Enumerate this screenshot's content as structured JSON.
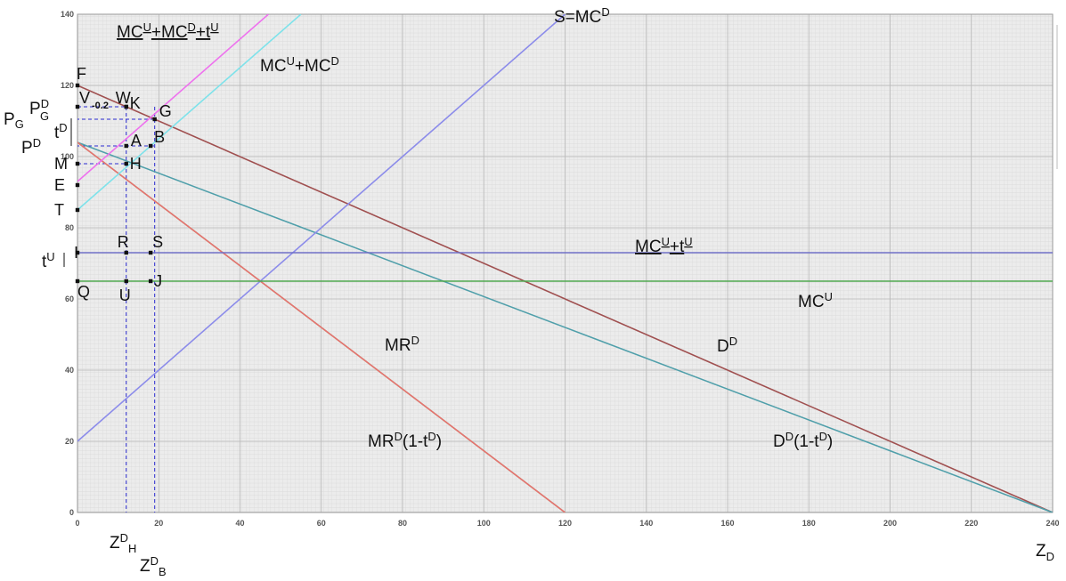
{
  "chart_data": {
    "type": "line",
    "title": "",
    "xlabel": "Z_D",
    "ylabel": "",
    "xlim": [
      0,
      240
    ],
    "ylim": [
      0,
      140
    ],
    "grid": true,
    "x_ticks": [
      0,
      20,
      40,
      60,
      80,
      100,
      120,
      140,
      160,
      180,
      200,
      220,
      240
    ],
    "y_ticks": [
      0,
      20,
      40,
      60,
      80,
      100,
      120,
      140
    ],
    "series": [
      {
        "name": "D^D",
        "color": "#a05050",
        "points": [
          [
            0,
            120
          ],
          [
            240,
            0
          ]
        ]
      },
      {
        "name": "D^D(1-t^D)",
        "color": "#4f9faa",
        "points": [
          [
            0,
            104
          ],
          [
            240,
            0
          ]
        ]
      },
      {
        "name": "MR^D",
        "color": "#7ad87a",
        "points": [
          [
            0,
            104
          ],
          [
            120,
            0
          ]
        ]
      },
      {
        "name": "MR^D(1-t^D)",
        "color": "#e87070",
        "points": [
          [
            0,
            104
          ],
          [
            120,
            0
          ]
        ]
      },
      {
        "name": "S=MC^D",
        "color": "#8c8cea",
        "points": [
          [
            0,
            20
          ],
          [
            120,
            140
          ]
        ]
      },
      {
        "name": "MC^U+MC^D",
        "color": "#7ee2ea",
        "points": [
          [
            0,
            85
          ],
          [
            55,
            140
          ]
        ]
      },
      {
        "name": "MC^U+MC^D+t^U",
        "color": "#ee72ee",
        "points": [
          [
            0,
            93
          ],
          [
            47,
            140
          ]
        ]
      },
      {
        "name": "MC^U+t^U",
        "color": "#7070c8",
        "points": [
          [
            0,
            73
          ],
          [
            240,
            73
          ]
        ]
      },
      {
        "name": "MC^U",
        "color": "#50a850",
        "points": [
          [
            0,
            65
          ],
          [
            240,
            65
          ]
        ]
      }
    ],
    "points": [
      {
        "label": "F",
        "x": 0,
        "y": 120
      },
      {
        "label": "V",
        "x": 0,
        "y": 114
      },
      {
        "label": "W",
        "x": 12,
        "y": 114
      },
      {
        "label": "K",
        "x": 12,
        "y": 114
      },
      {
        "label": "G",
        "x": 19,
        "y": 110.5
      },
      {
        "label": "A",
        "x": 12,
        "y": 103
      },
      {
        "label": "B",
        "x": 18,
        "y": 103
      },
      {
        "label": "M",
        "x": 0,
        "y": 98
      },
      {
        "label": "H",
        "x": 12,
        "y": 98
      },
      {
        "label": "E",
        "x": 0,
        "y": 92
      },
      {
        "label": "T",
        "x": 0,
        "y": 85
      },
      {
        "label": "R",
        "x": 12,
        "y": 73
      },
      {
        "label": "S",
        "x": 18,
        "y": 73
      },
      {
        "label": "I",
        "x": 0,
        "y": 73
      },
      {
        "label": "Q",
        "x": 0,
        "y": 65
      },
      {
        "label": "U",
        "x": 12,
        "y": 65
      },
      {
        "label": "J",
        "x": 18,
        "y": 65
      }
    ],
    "guides": [
      {
        "name": "Z^D_H",
        "x": 12
      },
      {
        "name": "Z^D_B",
        "x": 19
      },
      {
        "name": "P_G",
        "y": 110.5
      },
      {
        "name": "P^D",
        "y": 103
      }
    ]
  },
  "text": {
    "curve_mcu_mcd_tu": "MC",
    "mcu_mcd_tu_sup1": "U",
    "mcu_mcd_tu_mid": "+MC",
    "mcu_mcd_tu_sup2": "D",
    "mcu_mcd_tu_mid2": "+t",
    "mcu_mcd_tu_sup3": "U",
    "curve_mcu_mcd": "MC",
    "mcu_mcd_sup1": "U",
    "mcu_mcd_mid": "+MC",
    "mcu_mcd_sup2": "D",
    "curve_s": "S=MC",
    "s_sup": "D",
    "curve_mcu_tu": "MC",
    "mcu_tu_sup1": "U",
    "mcu_tu_mid": "+t",
    "mcu_tu_sup2": "U",
    "curve_mcu": "MC",
    "mcu_sup": "U",
    "curve_mrd": "MR",
    "mrd_sup": "D",
    "curve_dd": "D",
    "dd_sup": "D",
    "curve_mrd_t": "MR",
    "mrd_t_sup": "D",
    "mrd_t_rest": "(1-t",
    "mrd_t_sup2": "D",
    "mrd_t_close": ")",
    "curve_dd_t": "D",
    "dd_t_sup": "D",
    "dd_t_rest": "(1-t",
    "dd_t_sup2": "D",
    "dd_t_close": ")",
    "pg_main": "P",
    "pg_sub": "G",
    "pd_main": "P",
    "pd_sup": "D",
    "pd_sub": "G",
    "pd2_main": "P",
    "pd2_sup": "D",
    "td_main": "t",
    "td_sup": "D",
    "tu_main": "t",
    "tu_sup": "U",
    "zdh_main": "Z",
    "zdh_sup": "D",
    "zdh_sub": "H",
    "zdb_main": "Z",
    "zdb_sup": "D",
    "zdb_sub": "B",
    "zd_main": "Z",
    "zd_sub": "D",
    "neg_label": "-0.2"
  }
}
